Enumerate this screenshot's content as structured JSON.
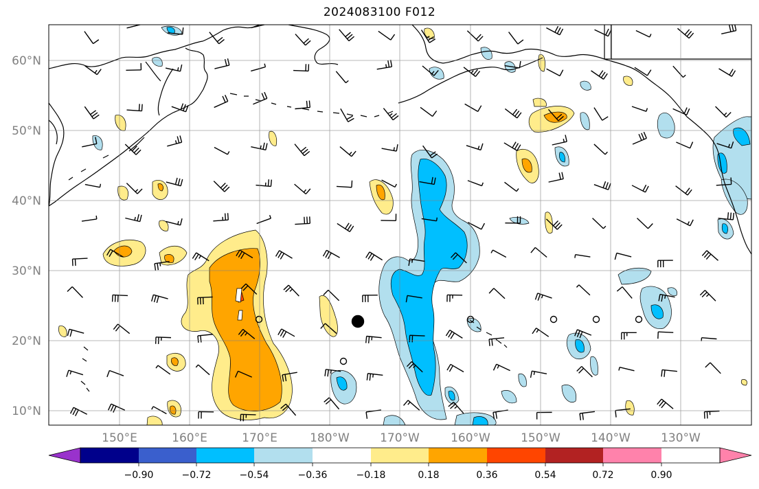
{
  "title": "2024083100 F012",
  "latitude_labels": [
    "60°N",
    "50°N",
    "40°N",
    "30°N",
    "20°N",
    "10°N"
  ],
  "longitude_labels": [
    "150°E",
    "160°E",
    "170°E",
    "180°W",
    "170°W",
    "160°W",
    "150°W",
    "140°W",
    "130°W"
  ],
  "colorbar": {
    "tick_labels": [
      "−0.90",
      "−0.72",
      "−0.54",
      "−0.36",
      "−0.18",
      "0.18",
      "0.36",
      "0.54",
      "0.72",
      "0.90"
    ],
    "colors": [
      "#9932cc",
      "#00008b",
      "#3a5fcd",
      "#00bfff",
      "#b2dfee",
      "#ffffff",
      "#ffec8b",
      "#ffa500",
      "#ff4500",
      "#b22222",
      "#ff82ab"
    ]
  },
  "fill_colors": {
    "light_blue": "#b2dfee",
    "blue": "#00bfff",
    "light_yellow": "#ffec8b",
    "orange": "#ffa500",
    "red": "#ff4500"
  },
  "map": {
    "lon_range": [
      "140°E",
      "120°W"
    ],
    "lat_range": [
      "8°N",
      "65°N"
    ],
    "gridlines": true,
    "coastlines": true,
    "wind_barbs": true
  }
}
